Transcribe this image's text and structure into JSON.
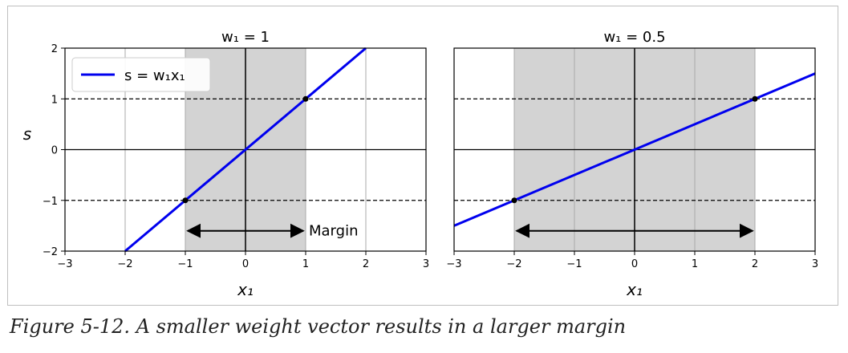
{
  "caption": "Figure 5-12. A smaller weight vector results in a larger margin",
  "colors": {
    "line": "#0000ee",
    "shade": "#d3d3d3",
    "grid": "#aaaaaa",
    "dashed": "#000000"
  },
  "chart_data": [
    {
      "type": "line",
      "title": "w₁ = 1",
      "xlabel": "x₁",
      "ylabel": "s",
      "xlim": [
        -3,
        3
      ],
      "ylim": [
        -2,
        2
      ],
      "xticks": [
        "−3",
        "−2",
        "−1",
        "0",
        "1",
        "2",
        "3"
      ],
      "yticks": [
        "−2",
        "−1",
        "0",
        "1",
        "2"
      ],
      "grid": true,
      "shaded_x_range": [
        -1,
        1
      ],
      "dashed_hlines": [
        1,
        -1
      ],
      "series": [
        {
          "name": "s = w₁x₁",
          "x": [
            -2,
            2
          ],
          "y": [
            -2,
            2
          ]
        }
      ],
      "points": [
        {
          "x": -1,
          "y": -1
        },
        {
          "x": 1,
          "y": 1
        }
      ],
      "margin_arrow": {
        "x_from": -1,
        "x_to": 1,
        "y": -1.6
      },
      "annotation": "Margin",
      "legend": {
        "label": "s = w₁x₁",
        "position": "top-left"
      }
    },
    {
      "type": "line",
      "title": "w₁ = 0.5",
      "xlabel": "x₁",
      "ylabel": "",
      "xlim": [
        -3,
        3
      ],
      "ylim": [
        -2,
        2
      ],
      "xticks": [
        "−3",
        "−2",
        "−1",
        "0",
        "1",
        "2",
        "3"
      ],
      "yticks": [],
      "grid": true,
      "shaded_x_range": [
        -2,
        2
      ],
      "dashed_hlines": [
        1,
        -1
      ],
      "series": [
        {
          "x": [
            -3,
            3
          ],
          "y": [
            -1.5,
            1.5
          ]
        }
      ],
      "points": [
        {
          "x": -2,
          "y": -1
        },
        {
          "x": 2,
          "y": 1
        }
      ],
      "margin_arrow": {
        "x_from": -2,
        "x_to": 2,
        "y": -1.6
      },
      "annotation": "",
      "legend": null
    }
  ]
}
